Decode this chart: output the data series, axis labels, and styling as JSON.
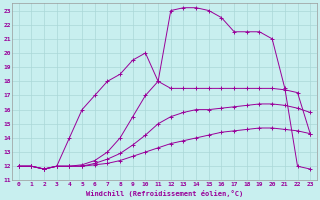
{
  "xlabel": "Windchill (Refroidissement éolien,°C)",
  "ylabel": "",
  "xlim": [
    -0.5,
    23.5
  ],
  "ylim": [
    11,
    23.5
  ],
  "yticks": [
    11,
    12,
    13,
    14,
    15,
    16,
    17,
    18,
    19,
    20,
    21,
    22,
    23
  ],
  "xticks": [
    0,
    1,
    2,
    3,
    4,
    5,
    6,
    7,
    8,
    9,
    10,
    11,
    12,
    13,
    14,
    15,
    16,
    17,
    18,
    19,
    20,
    21,
    22,
    23
  ],
  "bg_color": "#c8efef",
  "grid_color": "#aad8d8",
  "line_color": "#990099",
  "marker": "+",
  "lines": [
    {
      "x": [
        0,
        1,
        2,
        3,
        4,
        5,
        6,
        7,
        8,
        9,
        10,
        11,
        12,
        13,
        14,
        15,
        16,
        17,
        18,
        19,
        20,
        21,
        22,
        23
      ],
      "y": [
        12,
        12,
        11.8,
        12,
        12,
        12,
        12.1,
        12.2,
        12.4,
        12.7,
        13.0,
        13.3,
        13.6,
        13.8,
        14.0,
        14.2,
        14.4,
        14.5,
        14.6,
        14.7,
        14.7,
        14.6,
        14.5,
        14.3
      ]
    },
    {
      "x": [
        0,
        1,
        2,
        3,
        4,
        5,
        6,
        7,
        8,
        9,
        10,
        11,
        12,
        13,
        14,
        15,
        16,
        17,
        18,
        19,
        20,
        21,
        22,
        23
      ],
      "y": [
        12,
        12,
        11.8,
        12,
        12,
        12,
        12.2,
        12.5,
        12.9,
        13.5,
        14.2,
        15.0,
        15.5,
        15.8,
        16.0,
        16.0,
        16.1,
        16.2,
        16.3,
        16.4,
        16.4,
        16.3,
        16.1,
        15.8
      ]
    },
    {
      "x": [
        0,
        1,
        2,
        3,
        4,
        5,
        6,
        7,
        8,
        9,
        10,
        11,
        12,
        13,
        14,
        15,
        16,
        17,
        18,
        19,
        20,
        21,
        22,
        23
      ],
      "y": [
        12,
        12,
        11.8,
        12,
        12,
        12.1,
        12.4,
        13.0,
        14.0,
        15.5,
        17.0,
        18.0,
        17.5,
        17.5,
        17.5,
        17.5,
        17.5,
        17.5,
        17.5,
        17.5,
        17.5,
        17.4,
        17.2,
        14.3
      ]
    },
    {
      "x": [
        0,
        1,
        2,
        3,
        4,
        5,
        6,
        7,
        8,
        9,
        10,
        11,
        12,
        13,
        14,
        15,
        16,
        17,
        18,
        19,
        20,
        21,
        22,
        23
      ],
      "y": [
        12,
        12,
        11.8,
        12,
        14.0,
        16.0,
        17.0,
        18.0,
        18.5,
        19.5,
        20.0,
        18.0,
        23.0,
        23.2,
        23.2,
        23.0,
        22.5,
        21.5,
        21.5,
        21.5,
        21.0,
        17.5,
        12.0,
        11.8
      ]
    }
  ]
}
